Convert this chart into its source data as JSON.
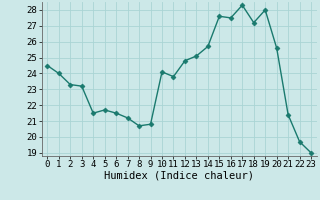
{
  "x": [
    0,
    1,
    2,
    3,
    4,
    5,
    6,
    7,
    8,
    9,
    10,
    11,
    12,
    13,
    14,
    15,
    16,
    17,
    18,
    19,
    20,
    21,
    22,
    23
  ],
  "y": [
    24.5,
    24.0,
    23.3,
    23.2,
    21.5,
    21.7,
    21.5,
    21.2,
    20.7,
    20.8,
    24.1,
    23.8,
    24.8,
    25.1,
    25.7,
    27.6,
    27.5,
    28.3,
    27.2,
    28.0,
    25.6,
    21.4,
    19.7,
    19.0
  ],
  "line_color": "#1a7a6e",
  "marker": "D",
  "marker_size": 2.5,
  "bg_color": "#cce8e8",
  "grid_color": "#aad4d4",
  "xlabel": "Humidex (Indice chaleur)",
  "ylim": [
    18.8,
    28.5
  ],
  "xlim": [
    -0.5,
    23.5
  ],
  "yticks": [
    19,
    20,
    21,
    22,
    23,
    24,
    25,
    26,
    27,
    28
  ],
  "xticks": [
    0,
    1,
    2,
    3,
    4,
    5,
    6,
    7,
    8,
    9,
    10,
    11,
    12,
    13,
    14,
    15,
    16,
    17,
    18,
    19,
    20,
    21,
    22,
    23
  ],
  "tick_fontsize": 6.5,
  "label_fontsize": 7.5
}
